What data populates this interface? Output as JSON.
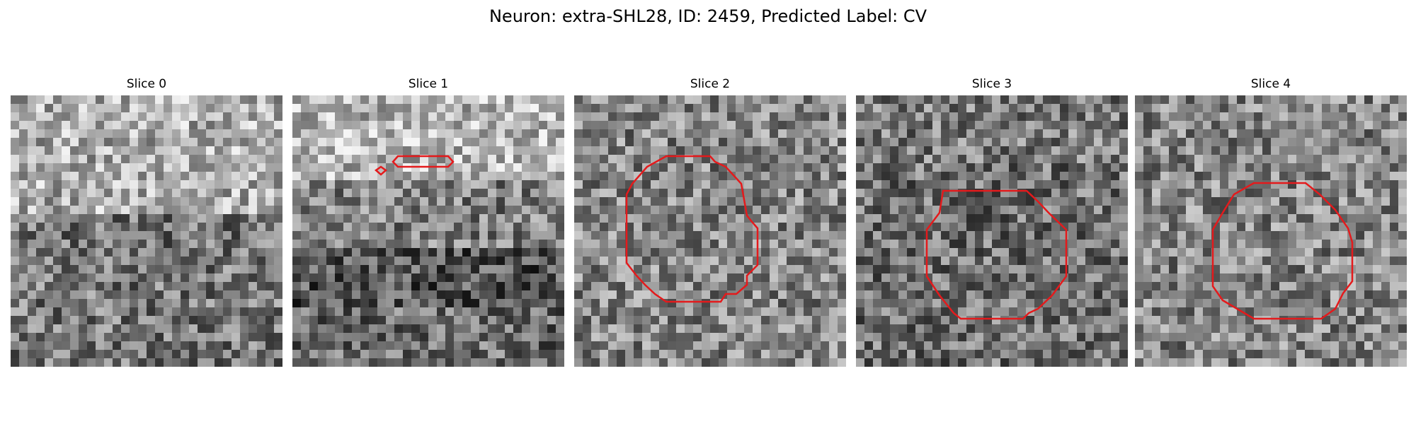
{
  "figure": {
    "title": "Neuron: extra-SHL28, ID: 2459, Predicted Label: CV"
  },
  "colors": {
    "background": "#ffffff",
    "contour": "#e41a1c",
    "grayscale_low": "#0a0a0a",
    "grayscale_high": "#f5f5f5"
  },
  "panels": [
    {
      "title": "Slice 0",
      "has_contour": false
    },
    {
      "title": "Slice 1",
      "has_contour": true
    },
    {
      "title": "Slice 2",
      "has_contour": true
    },
    {
      "title": "Slice 3",
      "has_contour": true
    },
    {
      "title": "Slice 4",
      "has_contour": true
    }
  ]
}
